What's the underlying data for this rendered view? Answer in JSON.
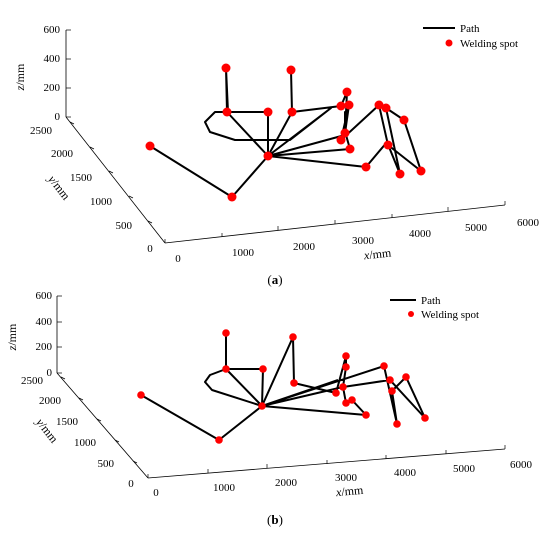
{
  "figure": {
    "axis_labels": {
      "x_var": "x",
      "y_var": "y",
      "z_var": "z",
      "unit": "/mm"
    }
  },
  "chart_data": [
    {
      "type": "line3d",
      "caption_letter": "a",
      "legend": {
        "path_label": "Path",
        "spot_label": "Welding spot",
        "placement": "top-right"
      },
      "colors": {
        "path": "#000000",
        "spot": "#ff0000"
      },
      "x_ticks": [
        "0",
        "1000",
        "2000",
        "3000",
        "4000",
        "5000",
        "6000"
      ],
      "y_ticks": [
        "0",
        "500",
        "1000",
        "1500",
        "2000",
        "2500"
      ],
      "z_ticks": [
        "0",
        "200",
        "400",
        "600"
      ],
      "path_screen_points": [
        [
          150,
          146
        ],
        [
          232,
          197
        ],
        [
          268,
          156
        ],
        [
          227,
          112
        ],
        [
          226,
          68
        ],
        [
          228,
          112
        ],
        [
          268,
          112
        ],
        [
          268,
          156
        ],
        [
          292,
          112
        ],
        [
          291,
          70
        ],
        [
          292,
          112
        ],
        [
          341,
          106
        ],
        [
          347,
          92
        ],
        [
          345,
          133
        ],
        [
          349,
          105
        ],
        [
          341,
          140
        ],
        [
          379,
          105
        ],
        [
          388,
          145
        ],
        [
          421,
          171
        ],
        [
          404,
          120
        ],
        [
          386,
          108
        ],
        [
          400,
          174
        ],
        [
          387,
          142
        ],
        [
          366,
          167
        ],
        [
          268,
          156
        ],
        [
          350,
          149
        ],
        [
          346,
          135
        ],
        [
          345,
          112
        ],
        [
          345,
          135
        ],
        [
          268,
          156
        ],
        [
          331,
          108
        ],
        [
          290,
          140
        ],
        [
          235,
          140
        ],
        [
          210,
          132
        ],
        [
          205,
          122
        ],
        [
          215,
          112
        ],
        [
          228,
          112
        ]
      ],
      "spots_screen_points": [
        [
          150,
          146
        ],
        [
          232,
          197
        ],
        [
          268,
          156
        ],
        [
          227,
          112
        ],
        [
          226,
          68
        ],
        [
          268,
          112
        ],
        [
          292,
          112
        ],
        [
          291,
          70
        ],
        [
          341,
          106
        ],
        [
          347,
          92
        ],
        [
          345,
          133
        ],
        [
          349,
          105
        ],
        [
          341,
          140
        ],
        [
          379,
          105
        ],
        [
          388,
          145
        ],
        [
          421,
          171
        ],
        [
          404,
          120
        ],
        [
          386,
          108
        ],
        [
          400,
          174
        ],
        [
          366,
          167
        ],
        [
          350,
          149
        ]
      ]
    },
    {
      "type": "line3d",
      "caption_letter": "b",
      "legend": {
        "path_label": "Path",
        "spot_label": "Welding spot",
        "placement": "top-right"
      },
      "colors": {
        "path": "#000000",
        "spot": "#ff0000"
      },
      "x_ticks": [
        "0",
        "1000",
        "2000",
        "3000",
        "4000",
        "5000",
        "6000"
      ],
      "y_ticks": [
        "0",
        "500",
        "1000",
        "1500",
        "2000",
        "2500"
      ],
      "z_ticks": [
        "0",
        "200",
        "400",
        "600"
      ],
      "path_screen_points": [
        [
          141,
          395
        ],
        [
          219,
          440
        ],
        [
          262,
          406
        ],
        [
          226,
          369
        ],
        [
          226,
          333
        ],
        [
          226,
          369
        ],
        [
          263,
          369
        ],
        [
          262,
          406
        ],
        [
          293,
          337
        ],
        [
          294,
          383
        ],
        [
          336,
          393
        ],
        [
          346,
          356
        ],
        [
          346,
          367
        ],
        [
          343,
          387
        ],
        [
          346,
          403
        ],
        [
          352,
          400
        ],
        [
          366,
          415
        ],
        [
          262,
          406
        ],
        [
          384,
          366
        ],
        [
          397,
          424
        ],
        [
          392,
          391
        ],
        [
          406,
          377
        ],
        [
          425,
          418
        ],
        [
          390,
          380
        ],
        [
          343,
          387
        ],
        [
          262,
          406
        ],
        [
          226,
          369
        ],
        [
          210,
          375
        ],
        [
          205,
          382
        ],
        [
          212,
          390
        ],
        [
          262,
          406
        ],
        [
          338,
          380
        ]
      ],
      "spots_screen_points": [
        [
          141,
          395
        ],
        [
          219,
          440
        ],
        [
          262,
          406
        ],
        [
          226,
          369
        ],
        [
          226,
          333
        ],
        [
          263,
          369
        ],
        [
          293,
          337
        ],
        [
          294,
          383
        ],
        [
          336,
          393
        ],
        [
          346,
          356
        ],
        [
          346,
          367
        ],
        [
          343,
          387
        ],
        [
          346,
          403
        ],
        [
          352,
          400
        ],
        [
          366,
          415
        ],
        [
          384,
          366
        ],
        [
          397,
          424
        ],
        [
          392,
          391
        ],
        [
          406,
          377
        ],
        [
          425,
          418
        ],
        [
          390,
          380
        ]
      ]
    }
  ]
}
